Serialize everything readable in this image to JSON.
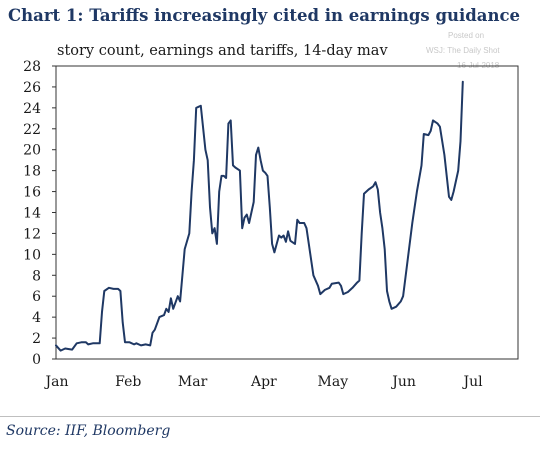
{
  "title": "Chart 1:   Tariffs increasingly cited in earnings guidance",
  "subtitle": "story count, earnings and tariffs, 14-day mav",
  "source": "Source: IIF, Bloomberg",
  "watermark": {
    "posted": "Posted on",
    "outlet": "WSJ: The Daily Shot",
    "date": "16-Jul-2018"
  },
  "colors": {
    "line": "#1f3864",
    "title": "#1f3864",
    "axis": "#333333"
  },
  "chart_data": {
    "type": "line",
    "title": "Tariffs increasingly cited in earnings guidance",
    "subtitle": "story count, earnings and tariffs, 14-day mav",
    "xlabel": "",
    "ylabel": "",
    "ylim": [
      0,
      28
    ],
    "yticks": [
      "0",
      "2",
      "4",
      "6",
      "8",
      "10",
      "12",
      "14",
      "16",
      "18",
      "20",
      "22",
      "24",
      "26",
      "28"
    ],
    "xlim_day": [
      1,
      202
    ],
    "xticks": [
      {
        "label": "Jan",
        "day": 1
      },
      {
        "label": "Feb",
        "day": 32
      },
      {
        "label": "Mar",
        "day": 60
      },
      {
        "label": "Apr",
        "day": 91
      },
      {
        "label": "May",
        "day": 121
      },
      {
        "label": "Jun",
        "day": 152
      },
      {
        "label": "Jul",
        "day": 182
      }
    ],
    "grid": false,
    "series": [
      {
        "points": [
          [
            1,
            1.3
          ],
          [
            3,
            0.8
          ],
          [
            5,
            1.0
          ],
          [
            8,
            0.9
          ],
          [
            10,
            1.5
          ],
          [
            12,
            1.6
          ],
          [
            14,
            1.6
          ],
          [
            15,
            1.4
          ],
          [
            17,
            1.5
          ],
          [
            20,
            1.5
          ],
          [
            21,
            4.5
          ],
          [
            22,
            6.5
          ],
          [
            24,
            6.8
          ],
          [
            26,
            6.7
          ],
          [
            28,
            6.7
          ],
          [
            29,
            6.5
          ],
          [
            30,
            3.5
          ],
          [
            31,
            1.6
          ],
          [
            33,
            1.6
          ],
          [
            35,
            1.4
          ],
          [
            36,
            1.5
          ],
          [
            38,
            1.3
          ],
          [
            40,
            1.4
          ],
          [
            42,
            1.3
          ],
          [
            43,
            2.5
          ],
          [
            44,
            2.8
          ],
          [
            46,
            4.0
          ],
          [
            48,
            4.2
          ],
          [
            49,
            4.8
          ],
          [
            50,
            4.5
          ],
          [
            51,
            5.8
          ],
          [
            52,
            4.8
          ],
          [
            54,
            6.0
          ],
          [
            55,
            5.5
          ],
          [
            56,
            8.0
          ],
          [
            57,
            10.5
          ],
          [
            59,
            12.0
          ],
          [
            60,
            16.0
          ],
          [
            61,
            19.0
          ],
          [
            62,
            24.0
          ],
          [
            63,
            24.1
          ],
          [
            64,
            24.2
          ],
          [
            66,
            20.0
          ],
          [
            67,
            19.0
          ],
          [
            68,
            14.5
          ],
          [
            69,
            12.0
          ],
          [
            70,
            12.5
          ],
          [
            71,
            11.0
          ],
          [
            72,
            16.0
          ],
          [
            73,
            17.5
          ],
          [
            74,
            17.5
          ],
          [
            75,
            17.3
          ],
          [
            76,
            22.5
          ],
          [
            77,
            22.8
          ],
          [
            78,
            18.5
          ],
          [
            79,
            18.3
          ],
          [
            81,
            18.0
          ],
          [
            82,
            12.5
          ],
          [
            83,
            13.5
          ],
          [
            84,
            13.8
          ],
          [
            85,
            13.0
          ],
          [
            86,
            14.0
          ],
          [
            87,
            15.0
          ],
          [
            88,
            19.5
          ],
          [
            89,
            20.2
          ],
          [
            90,
            19.0
          ],
          [
            91,
            18.0
          ],
          [
            92,
            17.8
          ],
          [
            93,
            17.5
          ],
          [
            94,
            14.5
          ],
          [
            95,
            11.0
          ],
          [
            96,
            10.2
          ],
          [
            97,
            11.0
          ],
          [
            98,
            11.8
          ],
          [
            99,
            11.6
          ],
          [
            100,
            11.8
          ],
          [
            101,
            11.2
          ],
          [
            102,
            12.2
          ],
          [
            103,
            11.3
          ],
          [
            105,
            11.0
          ],
          [
            106,
            13.3
          ],
          [
            107,
            13.0
          ],
          [
            109,
            13.0
          ],
          [
            110,
            12.5
          ],
          [
            111,
            11.0
          ],
          [
            112,
            9.5
          ],
          [
            113,
            8.0
          ],
          [
            115,
            7.0
          ],
          [
            116,
            6.2
          ],
          [
            118,
            6.6
          ],
          [
            120,
            6.8
          ],
          [
            121,
            7.2
          ],
          [
            124,
            7.3
          ],
          [
            125,
            7.0
          ],
          [
            126,
            6.2
          ],
          [
            128,
            6.4
          ],
          [
            130,
            6.8
          ],
          [
            132,
            7.3
          ],
          [
            133,
            7.5
          ],
          [
            134,
            12.0
          ],
          [
            135,
            15.8
          ],
          [
            137,
            16.2
          ],
          [
            139,
            16.5
          ],
          [
            140,
            16.9
          ],
          [
            141,
            16.2
          ],
          [
            142,
            14.0
          ],
          [
            143,
            12.5
          ],
          [
            144,
            10.5
          ],
          [
            145,
            6.5
          ],
          [
            146,
            5.5
          ],
          [
            147,
            4.8
          ],
          [
            149,
            5.0
          ],
          [
            151,
            5.5
          ],
          [
            152,
            6.0
          ],
          [
            154,
            9.5
          ],
          [
            156,
            13.0
          ],
          [
            158,
            16.0
          ],
          [
            160,
            18.5
          ],
          [
            161,
            21.5
          ],
          [
            163,
            21.4
          ],
          [
            164,
            21.8
          ],
          [
            165,
            22.8
          ],
          [
            167,
            22.5
          ],
          [
            168,
            22.2
          ],
          [
            170,
            19.5
          ],
          [
            172,
            15.5
          ],
          [
            173,
            15.2
          ],
          [
            174,
            16.0
          ],
          [
            176,
            18.0
          ],
          [
            177,
            20.8
          ],
          [
            178,
            26.5
          ]
        ]
      }
    ]
  }
}
